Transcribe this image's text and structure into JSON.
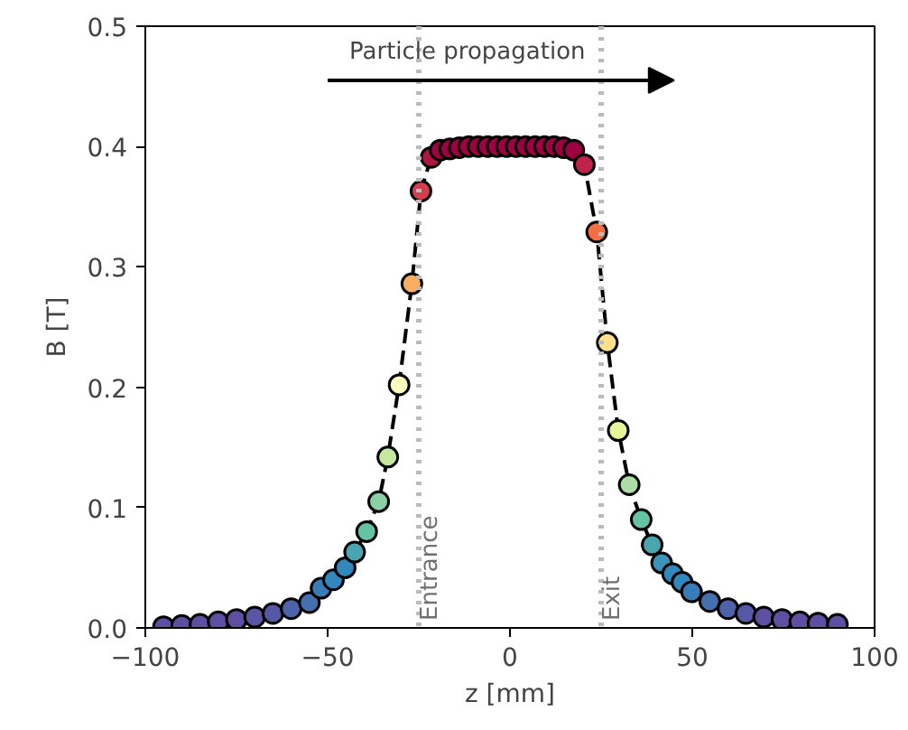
{
  "chart_data": {
    "type": "line",
    "xlabel": "z [mm]",
    "ylabel": "B [T]",
    "xlim": [
      -100,
      100
    ],
    "xticks": [
      {
        "value": -100,
        "label": "−100"
      },
      {
        "value": -50,
        "label": "−50"
      },
      0,
      50,
      100
    ],
    "ylim": [
      0,
      0.5
    ],
    "yticks": [
      {
        "value": 0,
        "label": "0.0"
      },
      0.1,
      0.2,
      0.3,
      0.4,
      0.5
    ],
    "grid": false,
    "series": [
      {
        "color": "#000000",
        "line_style": "dashed",
        "marker": "circle",
        "x": [
          -95,
          -90,
          -85,
          -80,
          -75,
          -70,
          -65,
          -60,
          -55,
          -51.8,
          -48.4,
          -45.2,
          -42.6,
          -39.3,
          -36,
          -33.5,
          -30.4,
          -26.9,
          -24.4,
          -21.6,
          -19.1,
          -16.5,
          -13.9,
          -11.3,
          -8.7,
          -6.1,
          -3.5,
          -0.9,
          1.7,
          4.3,
          6.9,
          9.5,
          12.1,
          14.7,
          17.5,
          20.4,
          23.8,
          26.7,
          29.7,
          32.7,
          36,
          39,
          41.6,
          44.6,
          47.2,
          49.8,
          54.8,
          59.8,
          64.7,
          69.6,
          74.6,
          79.5,
          84.5,
          89.8
        ],
        "values": [
          0.001,
          0.002,
          0.003,
          0.005,
          0.007,
          0.009,
          0.012,
          0.016,
          0.021,
          0.033,
          0.04,
          0.05,
          0.063,
          0.08,
          0.105,
          0.142,
          0.202,
          0.286,
          0.363,
          0.391,
          0.397,
          0.398,
          0.399,
          0.4,
          0.4,
          0.4,
          0.4,
          0.4,
          0.4,
          0.4,
          0.4,
          0.4,
          0.4,
          0.399,
          0.397,
          0.385,
          0.329,
          0.237,
          0.164,
          0.119,
          0.09,
          0.069,
          0.054,
          0.045,
          0.038,
          0.03,
          0.022,
          0.016,
          0.012,
          0.009,
          0.007,
          0.005,
          0.004,
          0.003
        ],
        "colors": [
          "#5e4fa2",
          "#5e4fa2",
          "#5e4fa2",
          "#5e4fa2",
          "#5e4fa2",
          "#5b55a5",
          "#5458a5",
          "#4d62a8",
          "#4470b0",
          "#3a7cb8",
          "#3288bd",
          "#3288bd",
          "#4aa5b0",
          "#66c2a5",
          "#89d0a5",
          "#c4e89e",
          "#ffffbf",
          "#fdae61",
          "#d53e4f",
          "#b0153f",
          "#9e0142",
          "#9e0142",
          "#9e0142",
          "#9e0142",
          "#9e0142",
          "#9e0142",
          "#9e0142",
          "#9e0142",
          "#9e0142",
          "#9e0142",
          "#9e0142",
          "#9e0142",
          "#9e0142",
          "#9e0142",
          "#9e0142",
          "#c0234a",
          "#f46d43",
          "#fee08b",
          "#e6f598",
          "#abdda4",
          "#66c2a5",
          "#4aa5b0",
          "#3a93b8",
          "#3288bd",
          "#3288bd",
          "#3a7cb8",
          "#4470b0",
          "#4d62a8",
          "#5458a5",
          "#5e4fa2",
          "#5e4fa2",
          "#5e4fa2",
          "#5e4fa2",
          "#5e4fa2"
        ]
      }
    ],
    "ref_lines": [
      {
        "axis": "x",
        "value": -25,
        "label": "Entrance",
        "color": "#bbbbbb",
        "line_style": "dotted"
      },
      {
        "axis": "x",
        "value": 25,
        "label": "Exit",
        "color": "#bbbbbb",
        "line_style": "dotted"
      }
    ],
    "annotations": [
      "Particle propagation"
    ]
  }
}
